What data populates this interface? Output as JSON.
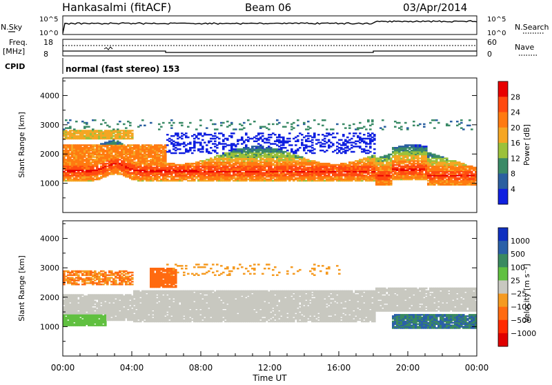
{
  "header": {
    "station": "Hankasalmi (fitACF)",
    "beam": "Beam 06",
    "date": "03/Apr/2014"
  },
  "top_panels": {
    "nsky_label": "N.Sky",
    "nsky_ticks": [
      "10^5",
      "10^0"
    ],
    "nsearch_label": "N.Search",
    "nsearch_ticks": [
      "10^5",
      "10^0"
    ],
    "freq_label": "Freq.",
    "freq_unit": "[MHz]",
    "freq_ticks": [
      "18",
      "8"
    ],
    "nave_label": "Nave",
    "nave_ticks": [
      "60",
      "0"
    ],
    "cpid_label": "CPID",
    "cpid_text": "normal (fast stereo) 153"
  },
  "chart_data": [
    {
      "type": "heatmap",
      "name": "power-panel",
      "ylabel": "Slant Range [km]",
      "ylim": [
        0,
        4600
      ],
      "yticks": [
        1000,
        2000,
        3000,
        4000
      ],
      "xlim": [
        0,
        24
      ],
      "colorbar": {
        "label": "Power [dB]",
        "ticks": [
          "28",
          "24",
          "20",
          "16",
          "12",
          "8",
          "4"
        ],
        "colors": [
          "#e80000",
          "#ff4a10",
          "#ff7a10",
          "#f5a623",
          "#9bc13a",
          "#3a8a66",
          "#2a5fa0",
          "#1020e0"
        ]
      }
    },
    {
      "type": "heatmap",
      "name": "velocity-panel",
      "ylabel": "Slant Range [km]",
      "xlabel": "Time UT",
      "ylim": [
        0,
        4600
      ],
      "yticks": [
        1000,
        2000,
        3000,
        4000
      ],
      "xlim": [
        0,
        24
      ],
      "xticks": [
        "00:00",
        "04:00",
        "08:00",
        "12:00",
        "16:00",
        "20:00",
        "00:00"
      ],
      "colorbar": {
        "label": "Velocity [m s⁻¹]",
        "ticks": [
          "1000",
          "500",
          "100",
          "25",
          "−25",
          "−100",
          "−500",
          "−1000"
        ],
        "colors": [
          "#1030c0",
          "#2a60a8",
          "#3a8a60",
          "#60c040",
          "#c8c8c0",
          "#f59a20",
          "#ff6a10",
          "#ff2a00",
          "#e00000"
        ]
      }
    }
  ]
}
